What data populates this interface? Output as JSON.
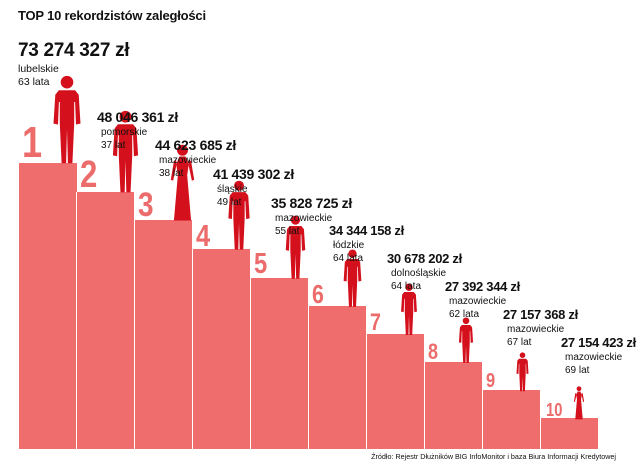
{
  "title": "TOP 10 rekordzistów zaległości",
  "source": "Źródło: Rejestr Dłużników BIG InfoMonitor i baza Biura Informacji Kredytowej",
  "colors": {
    "bar": "#ef6d6d",
    "rank": "#ec6b6b",
    "figure": "#d3101b",
    "text": "#111111",
    "background": "#ffffff"
  },
  "chart_data": {
    "type": "bar",
    "title": "TOP 10 rekordzistów zaległości",
    "xlabel": "",
    "ylabel": "",
    "currency": "zł",
    "categories": [
      "1",
      "2",
      "3",
      "4",
      "5",
      "6",
      "7",
      "8",
      "9",
      "10"
    ],
    "values": [
      73274327,
      48046361,
      44623685,
      41439302,
      35828725,
      34344158,
      30678202,
      27392344,
      27157368,
      27154423
    ],
    "entries": [
      {
        "rank": "1",
        "amount": "73 274 327",
        "unit": "zł",
        "region": "lubelskie",
        "age": "63 lata",
        "gender": "male"
      },
      {
        "rank": "2",
        "amount": "48 046 361",
        "unit": "zł",
        "region": "pomorskie",
        "age": "37 lat",
        "gender": "male"
      },
      {
        "rank": "3",
        "amount": "44 623 685",
        "unit": "zł",
        "region": "mazowieckie",
        "age": "38 lat",
        "gender": "female"
      },
      {
        "rank": "4",
        "amount": "41 439 302",
        "unit": "zł",
        "region": "śląskie",
        "age": "49 lat",
        "gender": "male"
      },
      {
        "rank": "5",
        "amount": "35 828 725",
        "unit": "zł",
        "region": "mazowieckie",
        "age": "55 lat",
        "gender": "male"
      },
      {
        "rank": "6",
        "amount": "34 344 158",
        "unit": "zł",
        "region": "łódzkie",
        "age": "64 lata",
        "gender": "male"
      },
      {
        "rank": "7",
        "amount": "30 678 202",
        "unit": "zł",
        "region": "dolnośląskie",
        "age": "64 lata",
        "gender": "male"
      },
      {
        "rank": "8",
        "amount": "27 392 344",
        "unit": "zł",
        "region": "mazowieckie",
        "age": "62 lata",
        "gender": "male"
      },
      {
        "rank": "9",
        "amount": "27 157 368",
        "unit": "zł",
        "region": "mazowieckie",
        "age": "67 lat",
        "gender": "male"
      },
      {
        "rank": "10",
        "amount": "27 154 423",
        "unit": "zł",
        "region": "mazowieckie",
        "age": "69 lat",
        "gender": "female"
      }
    ]
  }
}
